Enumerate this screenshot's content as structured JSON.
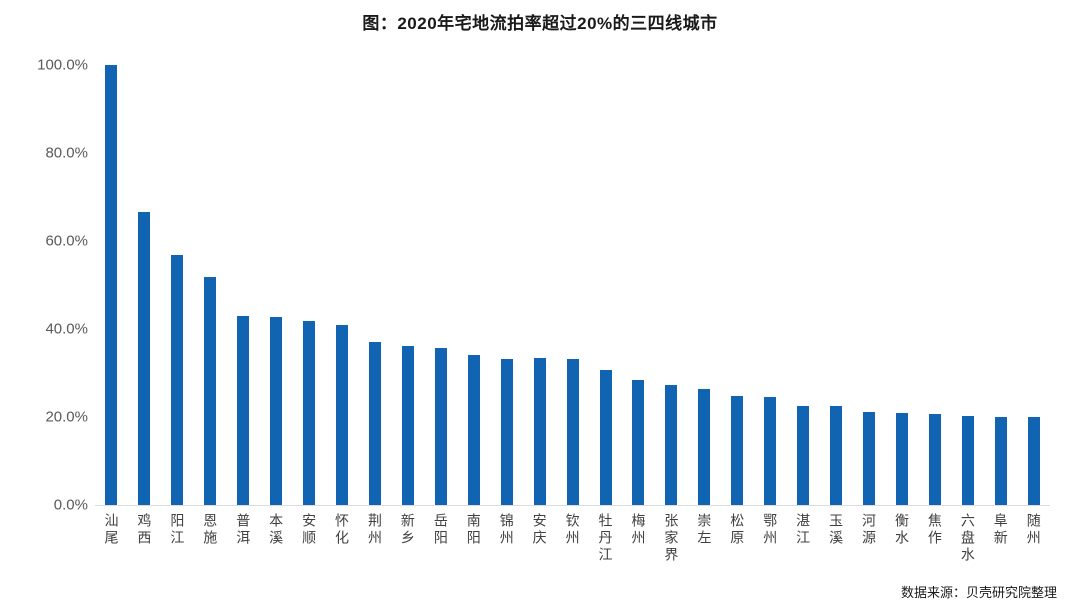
{
  "title": "图：2020年宅地流拍率超过20%的三四线城市",
  "source": "数据来源：贝壳研究院整理",
  "colors": {
    "bar": "#1064b2",
    "title_text": "#1a1a1a",
    "axis_label": "#595959",
    "x_label": "#404040",
    "axis_line": "#dcdcdc"
  },
  "chart_data": {
    "type": "bar",
    "title": "图：2020年宅地流拍率超过20%的三四线城市",
    "xlabel": "",
    "ylabel": "",
    "ylim": [
      0,
      100
    ],
    "grid": false,
    "legend": false,
    "bar_color": "#1064b2",
    "y_ticks": [
      "100.0%",
      "80.0%",
      "60.0%",
      "40.0%",
      "20.0%",
      "0.0%"
    ],
    "y_tick_values": [
      100,
      80,
      60,
      40,
      20,
      0
    ],
    "categories": [
      "汕尾",
      "鸡西",
      "阳江",
      "恩施",
      "普洱",
      "本溪",
      "安顺",
      "怀化",
      "荆州",
      "新乡",
      "岳阳",
      "南阳",
      "锦州",
      "安庆",
      "钦州",
      "牡丹江",
      "梅州",
      "张家界",
      "崇左",
      "松原",
      "鄂州",
      "湛江",
      "玉溪",
      "河源",
      "衡水",
      "焦作",
      "六盘水",
      "阜新",
      "随州"
    ],
    "values": [
      100.0,
      66.6,
      56.8,
      51.9,
      43.0,
      42.8,
      41.9,
      41.0,
      37.1,
      36.2,
      35.7,
      34.1,
      33.2,
      33.4,
      33.1,
      30.7,
      28.3,
      27.3,
      26.4,
      24.8,
      24.6,
      22.6,
      22.6,
      21.2,
      20.8,
      20.6,
      20.3,
      20.0,
      20.0
    ],
    "unit": "%",
    "source": "数据来源：贝壳研究院整理"
  }
}
